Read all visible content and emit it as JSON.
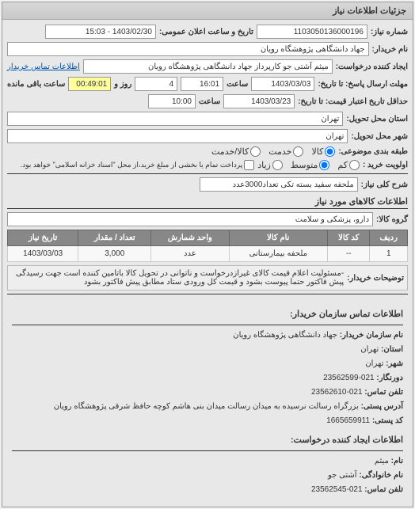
{
  "panel_title": "جزئیات اطلاعات نیاز",
  "request_number": {
    "label": "شماره نیاز:",
    "value": "1103050136000196"
  },
  "announce_datetime": {
    "label": "تاریخ و ساعت اعلان عمومی:",
    "value": "1403/02/30 - 15:03"
  },
  "buyer_name": {
    "label": "نام خریدار:",
    "value": "جهاد دانشگاهی پژوهشگاه رویان"
  },
  "creator": {
    "label": "ایجاد کننده درخواست:",
    "value": "میثم  آشتی جو کارپرداز جهاد دانشگاهی پژوهشگاه رویان",
    "contact_link": "اطلاعات تماس خریدار"
  },
  "deadline": {
    "label": "مهلت ارسال پاسخ: تا تاریخ:",
    "date": "1403/03/03",
    "time_label": "ساعت",
    "time": "16:01",
    "days_label": "روز و",
    "days": "4",
    "remaining_label": "ساعت باقی مانده",
    "remaining": "00:49:01"
  },
  "validity": {
    "label": "حداقل تاریخ اعتبار قیمت: تا تاریخ:",
    "date": "1403/03/23",
    "time_label": "ساعت",
    "time": "10:00"
  },
  "delivery_province": {
    "label": "استان محل تحویل:",
    "value": "تهران"
  },
  "delivery_city": {
    "label": "شهر محل تحویل:",
    "value": "تهران"
  },
  "subject_class": {
    "label": "طبقه بندی موضوعی:",
    "options": {
      "goods": "کالا",
      "service": "خدمت",
      "both": "کالا/خدمت"
    },
    "selected": "goods"
  },
  "priority": {
    "label": "اولویت خرید :",
    "options": {
      "low": "کم",
      "medium": "متوسط",
      "high": "زیاد"
    },
    "selected": "medium",
    "note": "پرداخت تمام یا بخشی از مبلغ خرید،از محل \"اسناد خزانه اسلامی\" خواهد بود."
  },
  "description": {
    "label": "شرح کلی نیاز:",
    "value": "ملحفه سفید بسته تکی تعداد3000عدد"
  },
  "goods_section_title": "اطلاعات کالاهای مورد نیاز",
  "goods_group": {
    "label": "گروه کالا:",
    "value": "دارو، پزشکی و سلامت"
  },
  "table": {
    "headers": {
      "idx": "ردیف",
      "code": "کد کالا",
      "name": "نام کالا",
      "unit": "واحد شمارش",
      "qty": "تعداد / مقدار",
      "date": "تاریخ نیاز"
    },
    "rows": [
      {
        "idx": "1",
        "code": "--",
        "name": "ملحفه بیمارستانی",
        "unit": "عدد",
        "qty": "3,000",
        "date": "1403/03/03"
      }
    ]
  },
  "buyer_note": {
    "label": "توضیحات خریدار:",
    "value": "-مسئولیت اعلام قیمت کالای غیرازدرخواست و ناتوانی در تحویل کالا باتامین کننده است جهت رسیدگی پیش فاکتور حتما پیوست بشود و قیمت کل ورودی ستاد مطابق پیش فاکتور بشود"
  },
  "contact": {
    "section_title": "اطلاعات تماس سازمان خریدار:",
    "org_name": {
      "label": "نام سازمان خریدار:",
      "value": "جهاد دانشگاهی پژوهشگاه رویان"
    },
    "province": {
      "label": "استان:",
      "value": "تهران"
    },
    "city": {
      "label": "شهر:",
      "value": "تهران"
    },
    "fax": {
      "label": "دورنگار:",
      "value": "021-23562599"
    },
    "phone": {
      "label": "تلفن تماس:",
      "value": "021-23562610"
    },
    "address": {
      "label": "آدرس پستی:",
      "value": "بزرگراه رسالت نرسیده به میدان رسالت میدان بنی هاشم کوچه حافظ شرقی پژوهشگاه رویان"
    },
    "postal": {
      "label": "کد پستی:",
      "value": "1665659911"
    },
    "creator_section": "اطلاعات ایجاد کننده درخواست:",
    "first_name": {
      "label": "نام:",
      "value": "میثم"
    },
    "last_name": {
      "label": "نام خانوادگی:",
      "value": "آشتی جو"
    },
    "creator_phone": {
      "label": "تلفن تماس:",
      "value": "021-23562545"
    }
  }
}
